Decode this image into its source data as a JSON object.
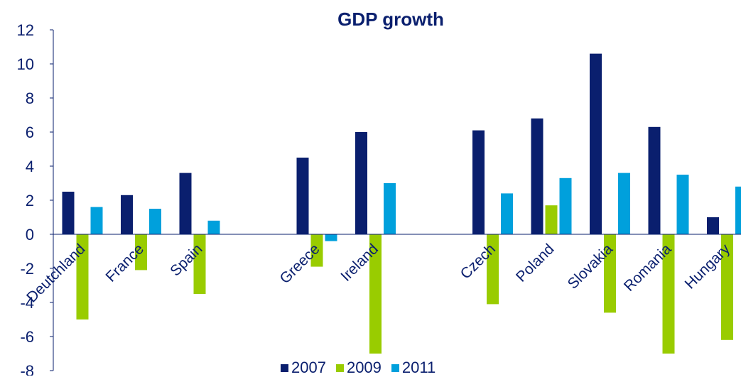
{
  "chart_data": {
    "type": "bar",
    "title": "GDP growth",
    "xlabel": "",
    "ylabel": "",
    "ylim": [
      -8,
      12
    ],
    "yticks": [
      12,
      10,
      8,
      6,
      4,
      2,
      0,
      -2,
      -4,
      -6,
      -8
    ],
    "grid": false,
    "legend_position": "bottom",
    "categories": [
      "Deutchland",
      "France",
      "Spain",
      "Greece",
      "Ireland",
      "Czech",
      "Poland",
      "Slovakia",
      "Romania",
      "Hungary"
    ],
    "groups": [
      [
        "Deutchland",
        "France",
        "Spain"
      ],
      [
        "Greece",
        "Ireland"
      ],
      [
        "Czech",
        "Poland",
        "Slovakia",
        "Romania",
        "Hungary"
      ]
    ],
    "series": [
      {
        "name": "2007",
        "color": "#0a1f6e",
        "values": [
          2.5,
          2.3,
          3.6,
          4.5,
          6.0,
          6.1,
          6.8,
          10.6,
          6.3,
          1.0
        ]
      },
      {
        "name": "2009",
        "color": "#99cc00",
        "values": [
          -5.0,
          -2.1,
          -3.5,
          -1.9,
          -7.0,
          -4.1,
          1.7,
          -4.6,
          -7.0,
          -6.2
        ]
      },
      {
        "name": "2011",
        "color": "#00a0dc",
        "values": [
          1.6,
          1.5,
          0.8,
          -0.4,
          3.0,
          2.4,
          3.3,
          3.6,
          3.5,
          2.8
        ]
      }
    ]
  }
}
